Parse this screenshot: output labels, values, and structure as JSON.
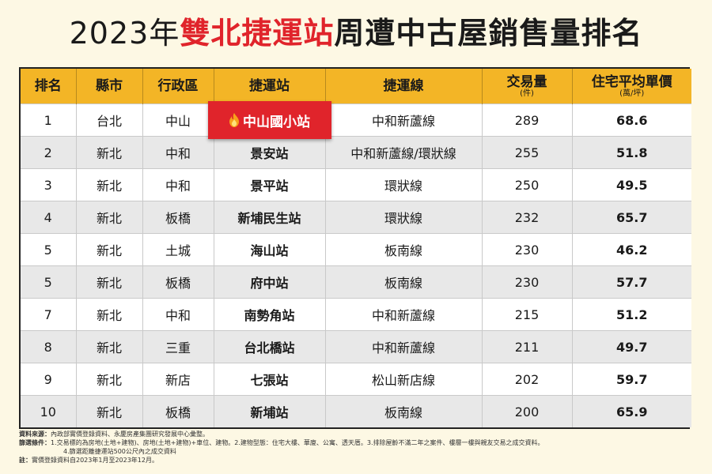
{
  "title": {
    "year": "2023年",
    "accent": "雙北捷運站",
    "rest": "周遭中古屋銷售量排名"
  },
  "columns": [
    {
      "label": "排名",
      "sub": ""
    },
    {
      "label": "縣市",
      "sub": ""
    },
    {
      "label": "行政區",
      "sub": ""
    },
    {
      "label": "捷運站",
      "sub": ""
    },
    {
      "label": "捷運線",
      "sub": ""
    },
    {
      "label": "交易量",
      "sub": "(件)"
    },
    {
      "label": "住宅平均單價",
      "sub": "(萬/坪)"
    }
  ],
  "rows": [
    {
      "rank": "1",
      "city": "台北",
      "district": "中山",
      "station": "中山國小站",
      "line": "中和新蘆線",
      "volume": "289",
      "price": "68.6"
    },
    {
      "rank": "2",
      "city": "新北",
      "district": "中和",
      "station": "景安站",
      "line": "中和新蘆線/環狀線",
      "volume": "255",
      "price": "51.8"
    },
    {
      "rank": "3",
      "city": "新北",
      "district": "中和",
      "station": "景平站",
      "line": "環狀線",
      "volume": "250",
      "price": "49.5"
    },
    {
      "rank": "4",
      "city": "新北",
      "district": "板橋",
      "station": "新埔民生站",
      "line": "環狀線",
      "volume": "232",
      "price": "65.7"
    },
    {
      "rank": "5",
      "city": "新北",
      "district": "土城",
      "station": "海山站",
      "line": "板南線",
      "volume": "230",
      "price": "46.2"
    },
    {
      "rank": "5",
      "city": "新北",
      "district": "板橋",
      "station": "府中站",
      "line": "板南線",
      "volume": "230",
      "price": "57.7"
    },
    {
      "rank": "7",
      "city": "新北",
      "district": "中和",
      "station": "南勢角站",
      "line": "中和新蘆線",
      "volume": "215",
      "price": "51.2"
    },
    {
      "rank": "8",
      "city": "新北",
      "district": "三重",
      "station": "台北橋站",
      "line": "中和新蘆線",
      "volume": "211",
      "price": "49.7"
    },
    {
      "rank": "9",
      "city": "新北",
      "district": "新店",
      "station": "七張站",
      "line": "松山新店線",
      "volume": "202",
      "price": "59.7"
    },
    {
      "rank": "10",
      "city": "新北",
      "district": "板橋",
      "station": "新埔站",
      "line": "板南線",
      "volume": "200",
      "price": "65.9"
    }
  ],
  "highlight_color": "#e0242b",
  "header_color": "#f3b526",
  "notes": {
    "source_label": "資料來源：",
    "source_text": "內政部實價登錄資料、永慶房產集團研究發展中心彙整。",
    "filter_label": "篩選條件：",
    "filter_text": "1.交易標的為房地(土地+建物)、房地(土地+建物)+車位、建物。2.建物型態：住宅大樓、華廈、公寓、透天厝。3.排除屋齡不滿二年之案件、樓層一樓與親友交易之成交資料。",
    "filter_text2": "4.篩選距離捷運站500公尺內之成交資料",
    "note_label": "註：",
    "note_text": "實價登錄資料自2023年1月至2023年12月。"
  }
}
